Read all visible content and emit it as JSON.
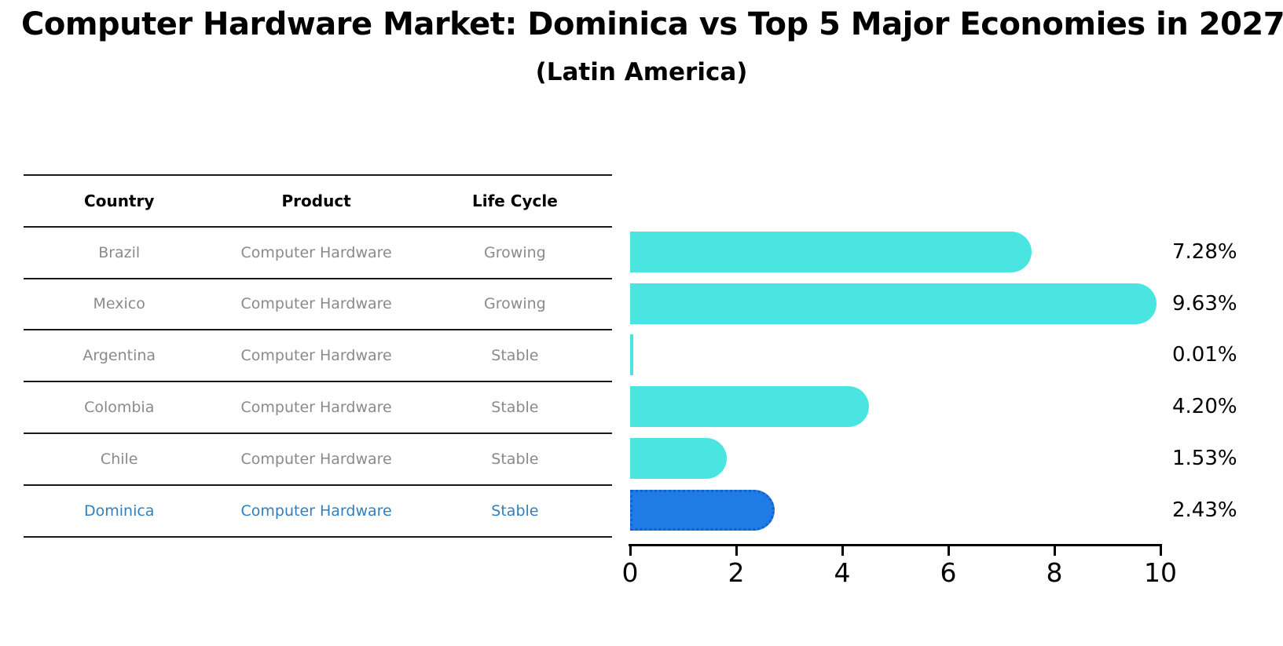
{
  "title": "Computer Hardware Market: Dominica vs Top 5 Major Economies in 2027",
  "subtitle": "(Latin America)",
  "table": {
    "headers": [
      "Country",
      "Product",
      "Life Cycle"
    ],
    "rows": [
      {
        "country": "Brazil",
        "product": "Computer Hardware",
        "life_cycle": "Growing",
        "highlight": false
      },
      {
        "country": "Mexico",
        "product": "Computer Hardware",
        "life_cycle": "Growing",
        "highlight": false
      },
      {
        "country": "Argentina",
        "product": "Computer Hardware",
        "life_cycle": "Stable",
        "highlight": false
      },
      {
        "country": "Colombia",
        "product": "Computer Hardware",
        "life_cycle": "Stable",
        "highlight": false
      },
      {
        "country": "Chile",
        "product": "Computer Hardware",
        "life_cycle": "Stable",
        "highlight": false
      },
      {
        "country": "Dominica",
        "product": "Computer Hardware",
        "life_cycle": "Stable",
        "highlight": true
      }
    ]
  },
  "chart_data": {
    "type": "bar",
    "orientation": "horizontal",
    "title": "Computer Hardware Market: Dominica vs Top 5 Major Economies in 2027",
    "subtitle": "(Latin America)",
    "categories": [
      "Brazil",
      "Mexico",
      "Argentina",
      "Colombia",
      "Chile",
      "Dominica"
    ],
    "values": [
      7.28,
      9.63,
      0.01,
      4.2,
      1.53,
      2.43
    ],
    "value_labels": [
      "7.28%",
      "9.63%",
      "0.01%",
      "4.20%",
      "1.53%",
      "2.43%"
    ],
    "xlabel": "",
    "ylabel": "",
    "xlim": [
      0,
      10
    ],
    "xticks": [
      "0",
      "2",
      "4",
      "6",
      "8",
      "10"
    ],
    "grid": false,
    "legend": false,
    "highlight_index": 5
  },
  "colors": {
    "bar": "#4ae5e1",
    "highlight_bar": "#1f7ce6",
    "highlight_bar_border": "#1262cc",
    "highlight_text": "#2e80c0",
    "table_text": "#8a8a8a",
    "header_text": "#000000"
  }
}
